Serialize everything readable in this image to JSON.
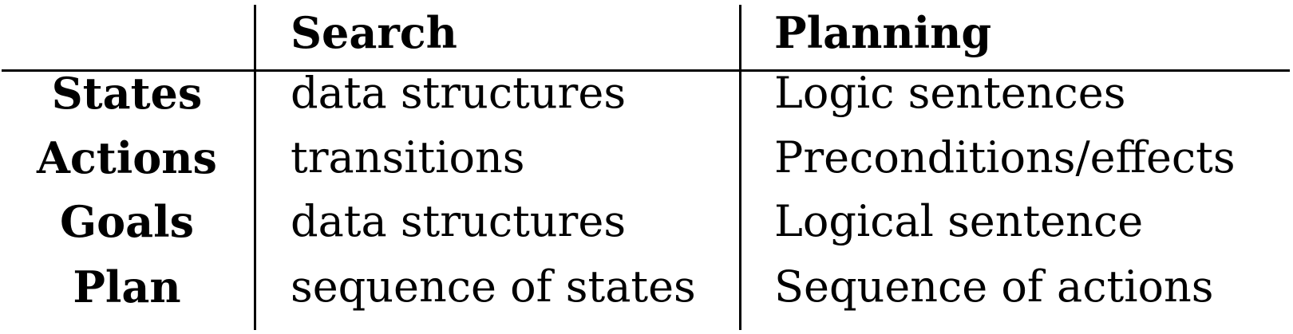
{
  "table": {
    "headers": [
      "",
      "Search",
      "Planning"
    ],
    "rows": [
      {
        "label": "States",
        "search": "data structures",
        "planning": "Logic sentences"
      },
      {
        "label": "Actions",
        "search": "transitions",
        "planning": "Preconditions/effects"
      },
      {
        "label": "Goals",
        "search": "data structures",
        "planning": "Logical sentence"
      },
      {
        "label": "Plan",
        "search": "sequence of states",
        "planning": "Sequence of actions"
      }
    ]
  }
}
